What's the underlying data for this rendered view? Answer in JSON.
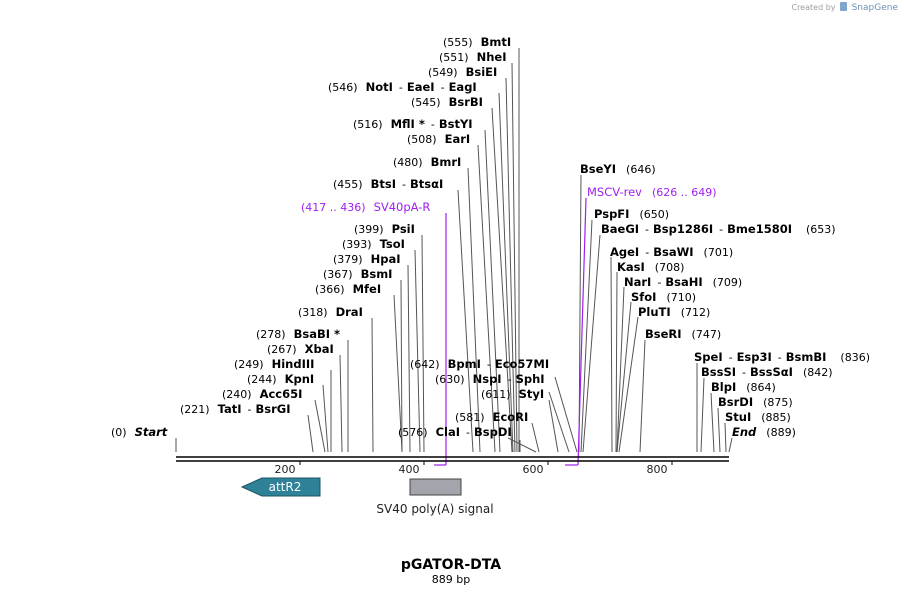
{
  "credit": {
    "prefix": "Created by",
    "brand": "SnapGene"
  },
  "title": "pGATOR-DTA",
  "length_label": "889 bp",
  "start": {
    "pos": "(0)",
    "name": "Start"
  },
  "end": {
    "name": "End",
    "pos": "(889)"
  },
  "ticks": [
    "200",
    "400",
    "600",
    "800"
  ],
  "sites_left": [
    {
      "pos": "(555)",
      "names": [
        "BmtI"
      ]
    },
    {
      "pos": "(551)",
      "names": [
        "NheI"
      ]
    },
    {
      "pos": "(549)",
      "names": [
        "BsiEI"
      ]
    },
    {
      "pos": "(546)",
      "names": [
        "NotI",
        "EaeI",
        "EagI"
      ]
    },
    {
      "pos": "(545)",
      "names": [
        "BsrBI"
      ]
    },
    {
      "pos": "(516)",
      "names": [
        "MflI *",
        "BstYI"
      ]
    },
    {
      "pos": "(508)",
      "names": [
        "EarI"
      ]
    },
    {
      "pos": "(480)",
      "names": [
        "BmrI"
      ]
    },
    {
      "pos": "(455)",
      "names": [
        "BtsI",
        "BtsαI"
      ]
    },
    {
      "pos": "(399)",
      "names": [
        "PsiI"
      ]
    },
    {
      "pos": "(393)",
      "names": [
        "TsoI"
      ]
    },
    {
      "pos": "(379)",
      "names": [
        "HpaI"
      ]
    },
    {
      "pos": "(367)",
      "names": [
        "BsmI"
      ]
    },
    {
      "pos": "(366)",
      "names": [
        "MfeI"
      ]
    },
    {
      "pos": "(318)",
      "names": [
        "DraI"
      ]
    },
    {
      "pos": "(278)",
      "names": [
        "BsaBI *"
      ]
    },
    {
      "pos": "(267)",
      "names": [
        "XbaI"
      ]
    },
    {
      "pos": "(249)",
      "names": [
        "HindIII"
      ]
    },
    {
      "pos": "(244)",
      "names": [
        "KpnI"
      ]
    },
    {
      "pos": "(240)",
      "names": [
        "Acc65I"
      ]
    },
    {
      "pos": "(221)",
      "names": [
        "TatI",
        "BsrGI"
      ]
    },
    {
      "pos": "(642)",
      "names": [
        "BpmI",
        "Eco57MI"
      ]
    },
    {
      "pos": "(630)",
      "names": [
        "NspI",
        "SphI"
      ]
    },
    {
      "pos": "(611)",
      "names": [
        "StyI"
      ]
    },
    {
      "pos": "(581)",
      "names": [
        "EcoRI"
      ]
    },
    {
      "pos": "(576)",
      "names": [
        "ClaI",
        "BspDI"
      ]
    }
  ],
  "sites_right": [
    {
      "pos": "(646)",
      "names": [
        "BseYI"
      ]
    },
    {
      "pos": "(650)",
      "names": [
        "PspFI"
      ]
    },
    {
      "pos": "(653)",
      "names": [
        "BaeGI",
        "Bsp1286I",
        "Bme1580I"
      ]
    },
    {
      "pos": "(701)",
      "names": [
        "AgeI",
        "BsaWI"
      ]
    },
    {
      "pos": "(708)",
      "names": [
        "KasI"
      ]
    },
    {
      "pos": "(709)",
      "names": [
        "NarI",
        "BsaHI"
      ]
    },
    {
      "pos": "(710)",
      "names": [
        "SfoI"
      ]
    },
    {
      "pos": "(712)",
      "names": [
        "PluTI"
      ]
    },
    {
      "pos": "(747)",
      "names": [
        "BseRI"
      ]
    },
    {
      "pos": "(836)",
      "names": [
        "SpeI",
        "Esp3I",
        "BsmBI"
      ]
    },
    {
      "pos": "(842)",
      "names": [
        "BssSI",
        "BssSαI"
      ]
    },
    {
      "pos": "(864)",
      "names": [
        "BlpI"
      ]
    },
    {
      "pos": "(875)",
      "names": [
        "BsrDI"
      ]
    },
    {
      "pos": "(885)",
      "names": [
        "StuI"
      ]
    }
  ],
  "primers": [
    {
      "range": "(417 .. 436)",
      "name": "SV40pA-R"
    },
    {
      "name": "MSCV-rev",
      "range": "(626 .. 649)"
    }
  ],
  "features": [
    {
      "name": "attR2",
      "type": "arrow-left",
      "color": "#2e8196"
    },
    {
      "name": "SV40 poly(A) signal",
      "type": "box",
      "color": "#a3a5ad"
    }
  ]
}
